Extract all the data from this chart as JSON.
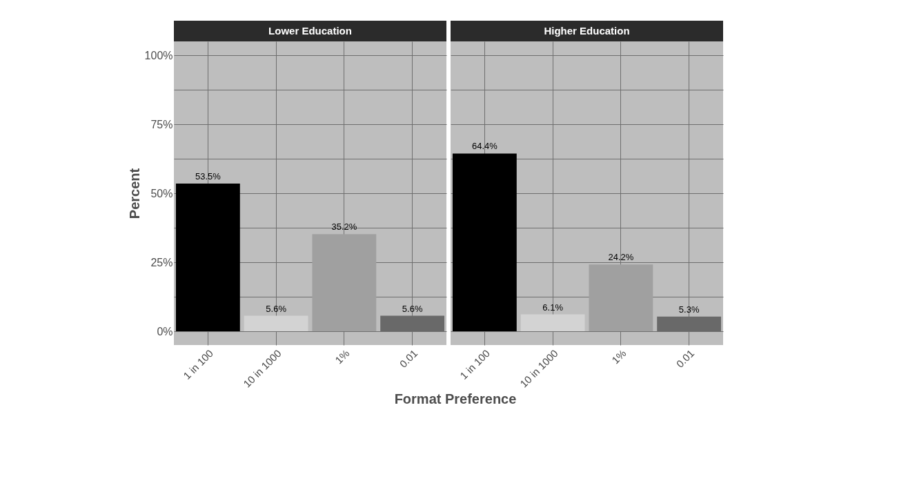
{
  "chart_data": [
    {
      "type": "bar",
      "title": "Lower Education",
      "xlabel": "Format Preference",
      "ylabel": "Percent",
      "categories": [
        "1 in 100",
        "10 in 1000",
        "1%",
        "0.01"
      ],
      "values": [
        53.5,
        5.6,
        35.2,
        5.6
      ],
      "value_labels": [
        "53.5%",
        "5.6%",
        "35.2%",
        "5.6%"
      ],
      "colors": [
        "#000000",
        "#d3d3d3",
        "#a0a0a0",
        "#696969"
      ],
      "ylim": [
        -5,
        105
      ],
      "yticks": [
        {
          "value": 0,
          "label": "0%"
        },
        {
          "value": 12.5,
          "label": null
        },
        {
          "value": 25,
          "label": "25%"
        },
        {
          "value": 37.5,
          "label": null
        },
        {
          "value": 50,
          "label": "50%"
        },
        {
          "value": 62.5,
          "label": null
        },
        {
          "value": 75,
          "label": "75%"
        },
        {
          "value": 87.5,
          "label": null
        },
        {
          "value": 100,
          "label": "100%"
        }
      ],
      "grid": true
    },
    {
      "type": "bar",
      "title": "Higher Education",
      "categories": [
        "1 in 100",
        "10 in 1000",
        "1%",
        "0.01"
      ],
      "values": [
        64.4,
        6.1,
        24.2,
        5.3
      ],
      "value_labels": [
        "64.4%",
        "6.1%",
        "24.2%",
        "5.3%"
      ],
      "colors": [
        "#000000",
        "#d3d3d3",
        "#a0a0a0",
        "#696969"
      ],
      "ylim": [
        -5,
        105
      ],
      "grid": true,
      "tick_labels": "x"
    }
  ]
}
